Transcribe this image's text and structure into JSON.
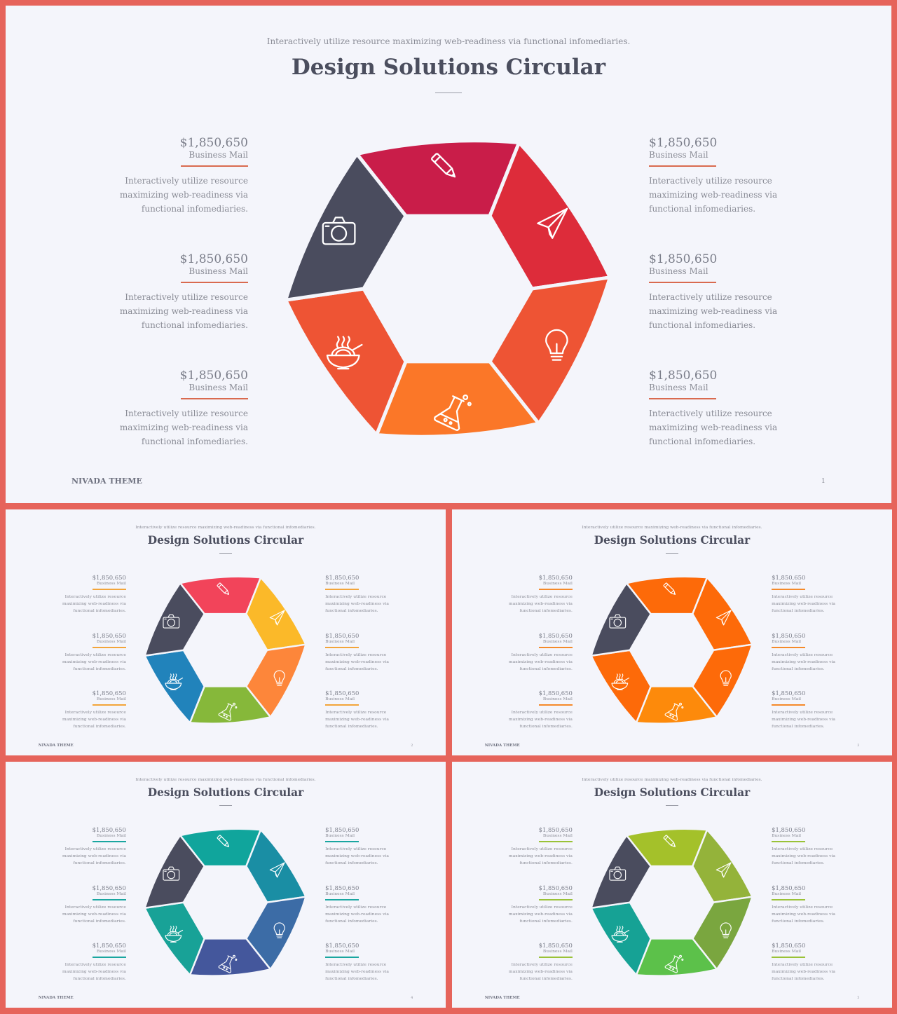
{
  "subtitle": "Interactively utilize resource maximizing web-readiness via functional infomediaries.",
  "title": "Design Solutions Circular",
  "footer": "NIVADA THEME",
  "block": {
    "amount": "$1,850,650",
    "label": "Business Mail",
    "description": "Interactively utilize resource maximizing web-readiness via functional infomediaries."
  },
  "segment_icons": [
    "pencil-icon",
    "paper-plane-icon",
    "lightbulb-icon",
    "flask-icon",
    "noodle-bowl-icon",
    "camera-icon"
  ],
  "slides": [
    {
      "page": "1",
      "rule_color": "#d96a4f",
      "colors": [
        "#c91d49",
        "#dd2c3a",
        "#ee5434",
        "#fb7728",
        "#ee5434",
        "#4a4c5e"
      ]
    },
    {
      "page": "2",
      "rule_color": "#f3a53a",
      "colors": [
        "#f2445a",
        "#fbb929",
        "#fd863a",
        "#86b83a",
        "#2183bb",
        "#4a4c5e"
      ]
    },
    {
      "page": "3",
      "rule_color": "#f58a2a",
      "colors": [
        "#fd6a09",
        "#fd6a09",
        "#fd6a09",
        "#fd8a0b",
        "#fd6a09",
        "#4a4c5e"
      ]
    },
    {
      "page": "4",
      "rule_color": "#1aa6a0",
      "colors": [
        "#10a59c",
        "#1a8ea4",
        "#3c6ca6",
        "#44579c",
        "#18a297",
        "#4a4c5e"
      ]
    },
    {
      "page": "5",
      "rule_color": "#9ac237",
      "colors": [
        "#a4c12a",
        "#94b33a",
        "#7aa63f",
        "#5cc14a",
        "#16a295",
        "#4a4c5e"
      ]
    }
  ]
}
